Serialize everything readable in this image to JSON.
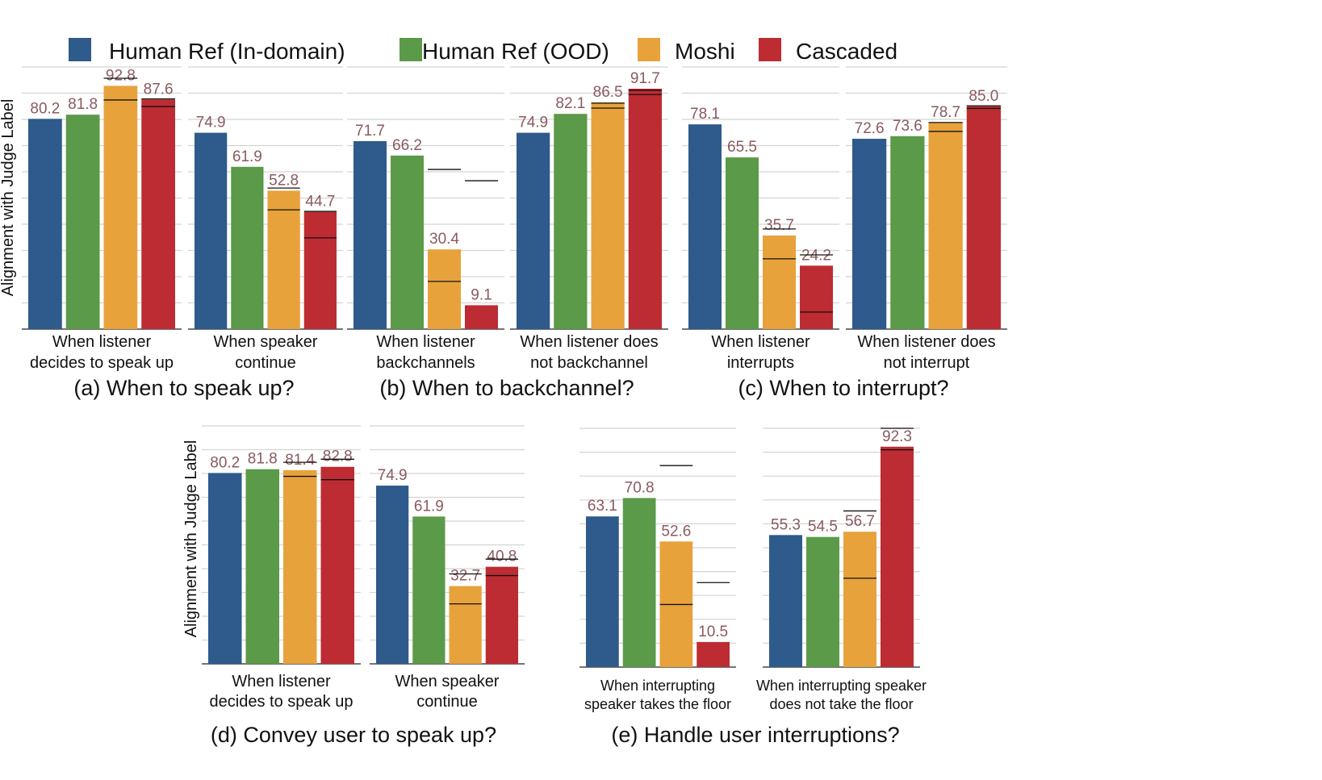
{
  "chart_data": {
    "type": "bar",
    "ylabel": "Alignment with Judge Label",
    "ylim": [
      0,
      100
    ],
    "grid": true,
    "legend_position": "top",
    "series": [
      {
        "name": "Human Ref (In-domain)",
        "color": "#2e5a8c"
      },
      {
        "name": "Human Ref (OOD)",
        "color": "#5b9a48"
      },
      {
        "name": "Moshi",
        "color": "#e8a23c"
      },
      {
        "name": "Cascaded",
        "color": "#bd2c32"
      }
    ],
    "value_label_color": "#8a5a5e",
    "groups": [
      {
        "title": "(a) When to speak up?",
        "panels": [
          {
            "category": [
              "When listener",
              "decides to speak up"
            ],
            "values": [
              80.2,
              81.8,
              92.8,
              87.6
            ],
            "moshi_interval": [
              87.4,
              95.7
            ],
            "cascaded_interval": [
              84.9,
              87.8
            ]
          },
          {
            "category": [
              "When speaker",
              "continue"
            ],
            "values": [
              74.9,
              61.9,
              52.8,
              44.7
            ],
            "moshi_interval": [
              45.5,
              53.8
            ],
            "cascaded_interval": [
              34.8,
              44.9
            ]
          }
        ]
      },
      {
        "title": "(b) When to backchannel?",
        "panels": [
          {
            "category": [
              "When listener",
              "backchannels"
            ],
            "values": [
              71.7,
              66.2,
              30.4,
              9.1
            ],
            "moshi_interval": [
              18.2,
              60.9
            ],
            "cascaded_interval": [
              null,
              56.6
            ]
          },
          {
            "category": [
              "When listener does",
              "not backchannel"
            ],
            "values": [
              74.9,
              82.1,
              86.5,
              91.7
            ],
            "moshi_interval": [
              84.3,
              86.2
            ],
            "cascaded_interval": [
              89.5,
              91.1
            ]
          }
        ]
      },
      {
        "title": "(c) When to interrupt?",
        "panels": [
          {
            "category": [
              "When listener",
              "interrupts"
            ],
            "values": [
              78.1,
              65.5,
              35.7,
              24.2
            ],
            "moshi_interval": [
              26.8,
              38.2
            ],
            "cascaded_interval": [
              6.5,
              28.3
            ]
          },
          {
            "category": [
              "When listener does",
              "not interrupt"
            ],
            "values": [
              72.6,
              73.6,
              78.7,
              85.0
            ],
            "moshi_interval": [
              75.4,
              78.8
            ],
            "cascaded_interval": [
              84.2,
              85.2
            ]
          }
        ]
      },
      {
        "title": "(d) Convey user to speak up?",
        "panels": [
          {
            "category": [
              "When listener",
              "decides to speak up"
            ],
            "values": [
              80.2,
              81.8,
              81.4,
              82.8
            ],
            "moshi_interval": [
              78.8,
              84.7
            ],
            "cascaded_interval": [
              77.4,
              86.0
            ]
          },
          {
            "category": [
              "When speaker",
              "continue"
            ],
            "values": [
              74.9,
              61.9,
              32.7,
              40.8
            ],
            "moshi_interval": [
              25.2,
              37.8
            ],
            "cascaded_interval": [
              37.1,
              44.0
            ]
          }
        ]
      },
      {
        "title": "(e) Handle user interruptions?",
        "panels": [
          {
            "category": [
              "When interrupting",
              "speaker takes the floor"
            ],
            "values": [
              63.1,
              70.8,
              52.6,
              10.5
            ],
            "moshi_interval": [
              26.2,
              84.4
            ],
            "cascaded_interval": [
              null,
              35.4
            ]
          },
          {
            "category": [
              "When interrupting speaker",
              "does not take the floor"
            ],
            "values": [
              55.3,
              54.5,
              56.7,
              92.3
            ],
            "moshi_interval": [
              37.2,
              65.4
            ],
            "cascaded_interval": [
              91.0,
              100.0
            ]
          }
        ]
      }
    ]
  }
}
